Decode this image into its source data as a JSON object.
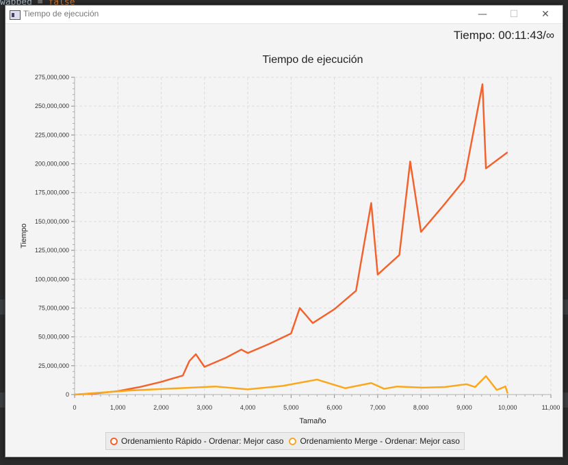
{
  "window": {
    "title": "Tiempo de ejecución",
    "timer": "Tiempo: 00:11:43/∞"
  },
  "chart_data": {
    "type": "line",
    "title": "Tiempo de ejecución",
    "xlabel": "Tamaño",
    "ylabel": "Tiempo",
    "xlim": [
      0,
      11000
    ],
    "ylim": [
      0,
      275000000
    ],
    "x_ticks": [
      "0",
      "1,000",
      "2,000",
      "3,000",
      "4,000",
      "5,000",
      "6,000",
      "7,000",
      "8,000",
      "9,000",
      "10,000",
      "11,000"
    ],
    "y_ticks": [
      "0",
      "25,000,000",
      "50,000,000",
      "75,000,000",
      "100,000,000",
      "125,000,000",
      "150,000,000",
      "175,000,000",
      "200,000,000",
      "225,000,000",
      "250,000,000",
      "275,000,000"
    ],
    "grid": true,
    "legend": "bottom",
    "series": [
      {
        "name": "Ordenamiento Rápido - Ordenar: Mejor caso",
        "color": "#f3622d",
        "x": [
          0,
          500,
          1000,
          1500,
          2000,
          2500,
          2650,
          2800,
          3000,
          3500,
          3850,
          4000,
          4500,
          5000,
          5200,
          5500,
          6000,
          6500,
          6850,
          7000,
          7500,
          7750,
          8000,
          8500,
          9000,
          9420,
          9500,
          10000
        ],
        "values": [
          0,
          1000000,
          3000000,
          6500000,
          11000000,
          16500000,
          29000000,
          35000000,
          24000000,
          32000000,
          39000000,
          36000000,
          44000000,
          53000000,
          75000000,
          62000000,
          74000000,
          90000000,
          166000000,
          104000000,
          121000000,
          202000000,
          141000000,
          163000000,
          186000000,
          269000000,
          196000000,
          210000000
        ]
      },
      {
        "name": "Ordenamiento Merge - Ordenar: Mejor caso",
        "color": "#fba71b",
        "x": [
          0,
          1250,
          2400,
          3250,
          4000,
          4800,
          5600,
          6250,
          6850,
          7150,
          7450,
          8050,
          8550,
          9050,
          9250,
          9500,
          9750,
          9950,
          10000
        ],
        "values": [
          0,
          3500000,
          5500000,
          7000000,
          4500000,
          7500000,
          13000000,
          5500000,
          10000000,
          5000000,
          7000000,
          6000000,
          6500000,
          9000000,
          6500000,
          16000000,
          4000000,
          7000000,
          1000000
        ]
      }
    ]
  }
}
